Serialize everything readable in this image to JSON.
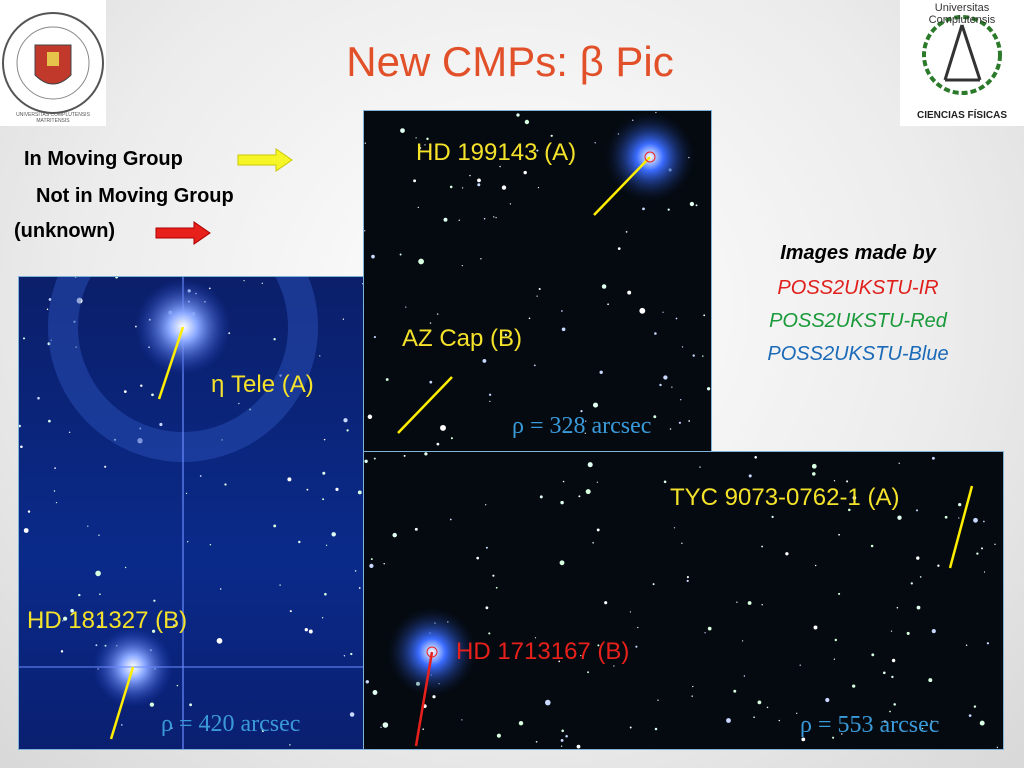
{
  "header": {
    "title": "New CMPs: β Pic"
  },
  "logos": {
    "left": "UNIVERSITAS COMPLUTENSIS MATRITENSIS",
    "right_top": "Universitas Complutensis",
    "right_bottom": "CIENCIAS FÍSICAS"
  },
  "legend": {
    "in_group": "In Moving Group",
    "not_in_group": "Not in Moving Group",
    "unknown": "(unknown)"
  },
  "credits": {
    "heading": "Images made by",
    "ir": "POSS2UKSTU-IR",
    "red": "POSS2UKSTU-Red",
    "blue": "POSS2UKSTU-Blue"
  },
  "panels": [
    {
      "star_a": "HD 199143 (A)",
      "star_b": "AZ Cap (B)",
      "separation": "ρ = 328 arcsec"
    },
    {
      "star_a": "η Tele (A)",
      "star_b": "HD 181327 (B)",
      "separation": "ρ = 420 arcsec"
    },
    {
      "star_a": "TYC 9073-0762-1 (A)",
      "star_b": "HD 1713167 (B)",
      "separation": "ρ = 553 arcsec"
    }
  ]
}
